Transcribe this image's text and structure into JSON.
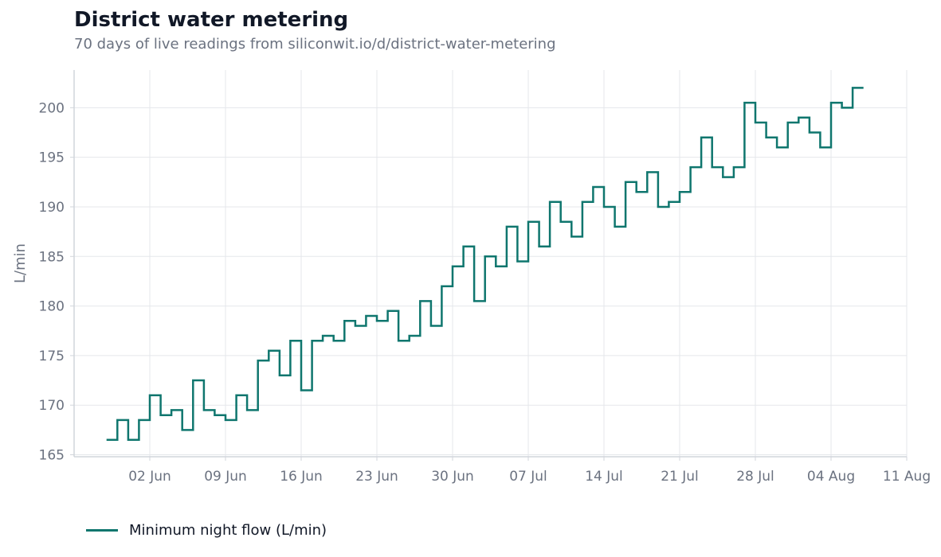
{
  "title": "District water metering",
  "subtitle": "70 days of live readings from siliconwit.io/d/district-water-metering",
  "colors": {
    "series": "#0f766e",
    "grid": "#e5e7eb",
    "axis": "#d1d5db",
    "tick_text": "#6b7280"
  },
  "chart_data": {
    "type": "line",
    "step": true,
    "title": "District water metering",
    "xlabel": "",
    "ylabel": "L/min",
    "ylim": [
      164.8,
      203.8
    ],
    "xlim": [
      "2024-05-26",
      "2024-08-11"
    ],
    "x_ticks": [
      {
        "date": "2024-06-02",
        "label": "02 Jun"
      },
      {
        "date": "2024-06-09",
        "label": "09 Jun"
      },
      {
        "date": "2024-06-16",
        "label": "16 Jun"
      },
      {
        "date": "2024-06-23",
        "label": "23 Jun"
      },
      {
        "date": "2024-06-30",
        "label": "30 Jun"
      },
      {
        "date": "2024-07-07",
        "label": "07 Jul"
      },
      {
        "date": "2024-07-14",
        "label": "14 Jul"
      },
      {
        "date": "2024-07-21",
        "label": "21 Jul"
      },
      {
        "date": "2024-07-28",
        "label": "28 Jul"
      },
      {
        "date": "2024-08-04",
        "label": "04 Aug"
      },
      {
        "date": "2024-08-11",
        "label": "11 Aug"
      }
    ],
    "y_ticks": [
      165,
      170,
      175,
      180,
      185,
      190,
      195,
      200
    ],
    "grid": true,
    "legend": "bottom-left",
    "series": [
      {
        "name": "Minimum night flow (L/min)",
        "color": "#0f766e",
        "x": [
          "2024-05-29",
          "2024-05-30",
          "2024-05-31",
          "2024-06-01",
          "2024-06-02",
          "2024-06-03",
          "2024-06-04",
          "2024-06-05",
          "2024-06-06",
          "2024-06-07",
          "2024-06-08",
          "2024-06-09",
          "2024-06-10",
          "2024-06-11",
          "2024-06-12",
          "2024-06-13",
          "2024-06-14",
          "2024-06-15",
          "2024-06-16",
          "2024-06-17",
          "2024-06-18",
          "2024-06-19",
          "2024-06-20",
          "2024-06-21",
          "2024-06-22",
          "2024-06-23",
          "2024-06-24",
          "2024-06-25",
          "2024-06-26",
          "2024-06-27",
          "2024-06-28",
          "2024-06-29",
          "2024-06-30",
          "2024-07-01",
          "2024-07-02",
          "2024-07-03",
          "2024-07-04",
          "2024-07-05",
          "2024-07-06",
          "2024-07-07",
          "2024-07-08",
          "2024-07-09",
          "2024-07-10",
          "2024-07-11",
          "2024-07-12",
          "2024-07-13",
          "2024-07-14",
          "2024-07-15",
          "2024-07-16",
          "2024-07-17",
          "2024-07-18",
          "2024-07-19",
          "2024-07-20",
          "2024-07-21",
          "2024-07-22",
          "2024-07-23",
          "2024-07-24",
          "2024-07-25",
          "2024-07-26",
          "2024-07-27",
          "2024-07-28",
          "2024-07-29",
          "2024-07-30",
          "2024-07-31",
          "2024-08-01",
          "2024-08-02",
          "2024-08-03",
          "2024-08-04",
          "2024-08-05",
          "2024-08-06"
        ],
        "values": [
          166.5,
          168.5,
          166.5,
          168.5,
          171.0,
          169.0,
          169.5,
          167.5,
          172.5,
          169.5,
          169.0,
          168.5,
          171.0,
          169.5,
          174.5,
          175.5,
          173.0,
          176.5,
          171.5,
          176.5,
          177.0,
          176.5,
          178.5,
          178.0,
          179.0,
          178.5,
          179.5,
          176.5,
          177.0,
          180.5,
          178.0,
          182.0,
          184.0,
          186.0,
          180.5,
          185.0,
          184.0,
          188.0,
          184.5,
          188.5,
          186.0,
          190.5,
          188.5,
          187.0,
          190.5,
          192.0,
          190.0,
          188.0,
          192.5,
          191.5,
          193.5,
          190.0,
          190.5,
          191.5,
          194.0,
          197.0,
          194.0,
          193.0,
          194.0,
          200.5,
          198.5,
          197.0,
          196.0,
          198.5,
          199.0,
          197.5,
          196.0,
          200.5,
          200.0,
          202.0
        ],
        "x_end": "2024-08-07"
      }
    ]
  }
}
